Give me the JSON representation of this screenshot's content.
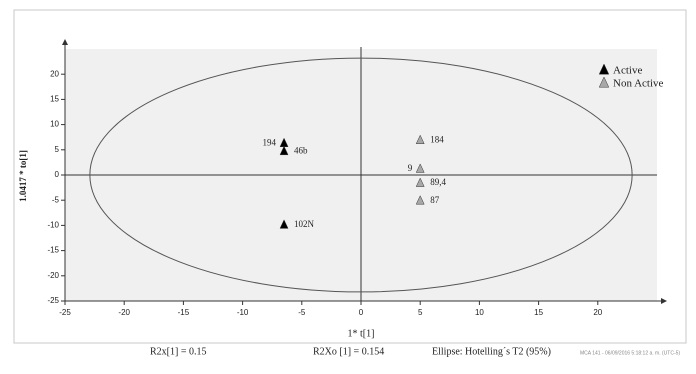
{
  "chart_data": {
    "type": "scatter",
    "x_label": "1* t[1]",
    "y_label": "1.0417 * to[1]",
    "xlim": [
      -25,
      25
    ],
    "ylim": [
      -25,
      25
    ],
    "xticks": [
      -25,
      -20,
      -15,
      -10,
      -5,
      0,
      5,
      10,
      15,
      20
    ],
    "yticks": [
      -25,
      -20,
      -15,
      -10,
      -5,
      0,
      5,
      10,
      15,
      20
    ],
    "ellipse": {
      "rx": 22.9,
      "ry": 23.2
    },
    "series": [
      {
        "name": "Active",
        "color": "#000000",
        "x": [
          -6.5,
          -6.5,
          -6.5
        ],
        "values": [
          6.3,
          4.7,
          -9.9
        ],
        "labels": [
          "194",
          "46b",
          "102N"
        ]
      },
      {
        "name": "Non Active",
        "color": "#a8a8a8",
        "x": [
          5,
          5,
          5,
          5
        ],
        "values": [
          6.9,
          1.2,
          -1.6,
          -5.1
        ],
        "labels": [
          "184",
          "9",
          "89,4",
          "87"
        ]
      }
    ],
    "annotations": [
      "R2x[1] = 0.15",
      "R2Xo [1] = 0.154",
      "Ellipse: Hotelling´s T2 (95%)",
      "MCA 141 - 06/09/2016 5:18:12 a. m. (UTC-5)"
    ]
  }
}
